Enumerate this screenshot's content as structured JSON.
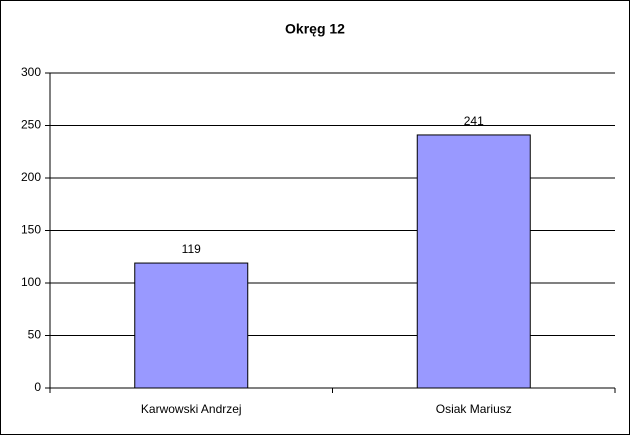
{
  "chart_data": {
    "type": "bar",
    "title": "Okręg 12",
    "categories": [
      "Karwowski Andrzej",
      "Osiak Mariusz"
    ],
    "values": [
      119,
      241
    ],
    "color": "#9999ff",
    "ylim": [
      0,
      300
    ],
    "yticks": [
      0,
      50,
      100,
      150,
      200,
      250,
      300
    ],
    "grid": true,
    "data_labels": true
  }
}
